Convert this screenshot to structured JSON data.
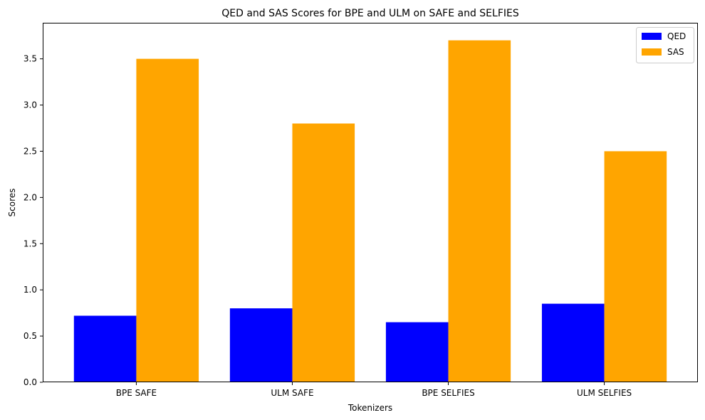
{
  "chart_data": {
    "type": "bar",
    "title": "QED and SAS Scores for BPE and ULM on SAFE and SELFIES",
    "xlabel": "Tokenizers",
    "ylabel": "Scores",
    "categories": [
      "BPE SAFE",
      "ULM SAFE",
      "BPE SELFIES",
      "ULM SELFIES"
    ],
    "series": [
      {
        "name": "QED",
        "color": "#0000ff",
        "values": [
          0.72,
          0.8,
          0.65,
          0.85
        ]
      },
      {
        "name": "SAS",
        "color": "#ffa500",
        "values": [
          3.5,
          2.8,
          3.7,
          2.5
        ]
      }
    ],
    "ylim": [
      0,
      3.89
    ],
    "yticks": [
      0.0,
      0.5,
      1.0,
      1.5,
      2.0,
      2.5,
      3.0,
      3.5
    ],
    "ytick_labels": [
      "0.0",
      "0.5",
      "1.0",
      "1.5",
      "2.0",
      "2.5",
      "3.0",
      "3.5"
    ],
    "grid": false,
    "legend_position": "top-right"
  }
}
